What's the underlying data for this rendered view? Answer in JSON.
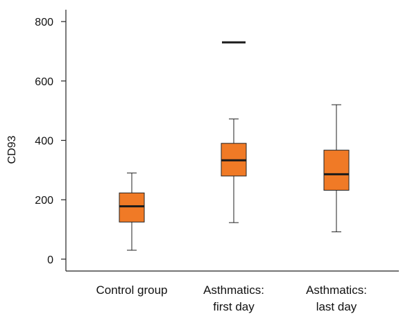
{
  "chart_data": {
    "type": "box",
    "ylabel": "CD93",
    "xlabel": "",
    "title": "",
    "ylim": [
      -40,
      840
    ],
    "yticks": [
      0,
      200,
      400,
      600,
      800
    ],
    "categories": [
      [
        "Control group"
      ],
      [
        "Asthmatics:",
        "first day"
      ],
      [
        "Asthmatics:",
        "last day"
      ]
    ],
    "boxes": [
      {
        "min": 30,
        "q1": 125,
        "median": 178,
        "q3": 223,
        "max": 290,
        "outliers": []
      },
      {
        "min": 123,
        "q1": 280,
        "median": 333,
        "q3": 390,
        "max": 472,
        "outliers": [
          730
        ]
      },
      {
        "min": 92,
        "q1": 232,
        "median": 286,
        "q3": 367,
        "max": 520,
        "outliers": []
      }
    ],
    "colors": {
      "box": "#f07a26",
      "line": "#222222",
      "median": "#1a1a1a"
    }
  }
}
